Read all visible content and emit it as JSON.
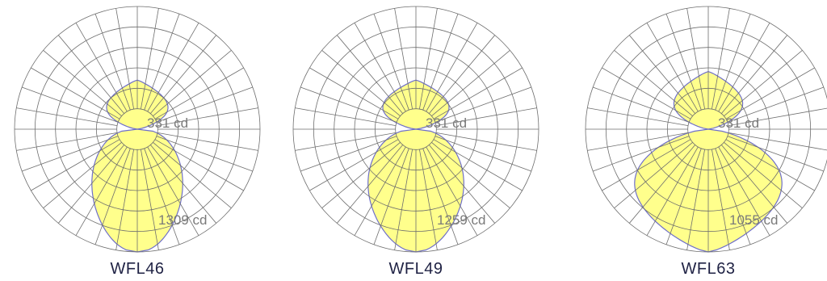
{
  "colors": {
    "grid": "#6e6e6e",
    "lobe_fill": "#ffff8c",
    "lobe_stroke": "#6f6fc9",
    "label": "#7a7a7a",
    "title": "#1f2244"
  },
  "diagrams": [
    {
      "model": "WFL46",
      "upper_label": "331 cd",
      "lower_label": "1309 cd",
      "upper_lobe": {
        "reach": 0.4,
        "half_width": 0.25,
        "shape": 1.2
      },
      "lower_lobe": {
        "reach": 1.0,
        "half_width": 0.37,
        "shape": 2.2
      }
    },
    {
      "model": "WFL49",
      "upper_label": "331 cd",
      "lower_label": "1259 cd",
      "upper_lobe": {
        "reach": 0.4,
        "half_width": 0.27,
        "shape": 1.2
      },
      "lower_lobe": {
        "reach": 1.0,
        "half_width": 0.39,
        "shape": 2.0
      }
    },
    {
      "model": "WFL63",
      "upper_label": "331 cd",
      "lower_label": "1055 cd",
      "upper_lobe": {
        "reach": 0.47,
        "half_width": 0.28,
        "shape": 1.2
      },
      "lower_lobe": {
        "reach": 1.0,
        "half_width": 0.6,
        "shape": 1.4
      }
    }
  ]
}
